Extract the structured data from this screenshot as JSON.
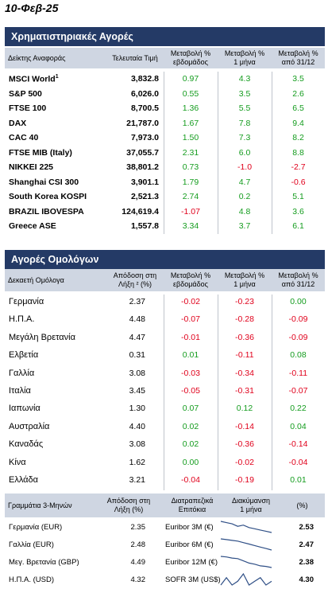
{
  "date": "10-Φεβ-25",
  "stocks": {
    "title": "Χρηματιστηριακές Αγορές",
    "headers": [
      "Δείκτης Αναφοράς",
      "Τελευταία Τιμή",
      "Μεταβολή %\nεβδομάδος",
      "Μεταβολή %\n1 μήνα",
      "Μεταβολή %\nαπό 31/12"
    ],
    "rows": [
      {
        "name": "MSCI World",
        "sup": "1",
        "price": "3,832.8",
        "w": "0.97",
        "m": "4.3",
        "y": "3.5"
      },
      {
        "name": "S&P 500",
        "sup": "",
        "price": "6,026.0",
        "w": "0.55",
        "m": "3.5",
        "y": "2.6"
      },
      {
        "name": "FTSE 100",
        "sup": "",
        "price": "8,700.5",
        "w": "1.36",
        "m": "5.5",
        "y": "6.5"
      },
      {
        "name": "DAX",
        "sup": "",
        "price": "21,787.0",
        "w": "1.67",
        "m": "7.8",
        "y": "9.4"
      },
      {
        "name": "CAC 40",
        "sup": "",
        "price": "7,973.0",
        "w": "1.50",
        "m": "7.3",
        "y": "8.2"
      },
      {
        "name": "FTSE MIB (Italy)",
        "sup": "",
        "price": "37,055.7",
        "w": "2.31",
        "m": "6.0",
        "y": "8.8"
      },
      {
        "name": "NIKKEI 225",
        "sup": "",
        "price": "38,801.2",
        "w": "0.73",
        "m": "-1.0",
        "y": "-2.7"
      },
      {
        "name": "Shanghai CSI 300",
        "sup": "",
        "price": "3,901.1",
        "w": "1.79",
        "m": "4.7",
        "y": "-0.6"
      },
      {
        "name": "South Korea KOSPI",
        "sup": "",
        "price": "2,521.3",
        "w": "2.74",
        "m": "0.2",
        "y": "5.1"
      },
      {
        "name": "BRAZIL IBOVESPA",
        "sup": "",
        "price": "124,619.4",
        "w": "-1.07",
        "m": "4.8",
        "y": "3.6"
      },
      {
        "name": "Greece ASE",
        "sup": "",
        "price": "1,557.8",
        "w": "3.34",
        "m": "3.7",
        "y": "6.1"
      }
    ]
  },
  "bonds": {
    "title": "Αγορές Ομολόγων",
    "headers": [
      "Δεκαετή Ομόλογα",
      "Απόδοση στη\nΛήξη ² (%)",
      "Μεταβολή %\nεβδομάδος",
      "Μεταβολή %\n1 μήνα",
      "Μεταβολή %\nαπό 31/12"
    ],
    "rows": [
      {
        "name": "Γερμανία",
        "yield": "2.37",
        "w": "-0.02",
        "m": "-0.23",
        "y": "0.00"
      },
      {
        "name": "Η.Π.Α.",
        "yield": "4.48",
        "w": "-0.07",
        "m": "-0.28",
        "y": "-0.09"
      },
      {
        "name": "Μεγάλη Βρετανία",
        "yield": "4.47",
        "w": "-0.01",
        "m": "-0.36",
        "y": "-0.09"
      },
      {
        "name": "Ελβετία",
        "yield": "0.31",
        "w": "0.01",
        "m": "-0.11",
        "y": "0.08"
      },
      {
        "name": "Γαλλία",
        "yield": "3.08",
        "w": "-0.03",
        "m": "-0.34",
        "y": "-0.11"
      },
      {
        "name": "Ιταλία",
        "yield": "3.45",
        "w": "-0.05",
        "m": "-0.31",
        "y": "-0.07"
      },
      {
        "name": "Ιαπωνία",
        "yield": "1.30",
        "w": "0.07",
        "m": "0.12",
        "y": "0.22"
      },
      {
        "name": "Αυστραλία",
        "yield": "4.40",
        "w": "0.02",
        "m": "-0.14",
        "y": "0.04"
      },
      {
        "name": "Καναδάς",
        "yield": "3.08",
        "w": "0.02",
        "m": "-0.36",
        "y": "-0.14"
      },
      {
        "name": "Κίνα",
        "yield": "1.62",
        "w": "0.00",
        "m": "-0.02",
        "y": "-0.04"
      },
      {
        "name": "Ελλάδα",
        "yield": "3.21",
        "w": "-0.04",
        "m": "-0.19",
        "y": "0.01"
      }
    ]
  },
  "tbills": {
    "headers": [
      "Γραμμάτια 3-Μηνών",
      "Απόδοση στη\nΛήξη (%)",
      "Διατραπεζικά\nΕπιτόκια",
      "Διακύμανση\n1 μήνα",
      "(%)"
    ],
    "rows": [
      {
        "name": "Γερμανία (EUR)",
        "yield": "2.35",
        "rate": "Euribor 3M (€)",
        "val": "2.53",
        "trend": [
          2.62,
          2.61,
          2.6,
          2.58,
          2.59,
          2.57,
          2.56,
          2.55,
          2.54,
          2.53
        ]
      },
      {
        "name": "Γαλλία (EUR)",
        "yield": "2.48",
        "rate": "Euribor 6M (€)",
        "val": "2.47",
        "trend": [
          2.62,
          2.61,
          2.6,
          2.59,
          2.57,
          2.55,
          2.53,
          2.51,
          2.49,
          2.47
        ]
      },
      {
        "name": "Μεγ. Βρετανία (GBP)",
        "yield": "4.49",
        "rate": "Euribor 12M (€)",
        "val": "2.38",
        "trend": [
          2.58,
          2.57,
          2.55,
          2.54,
          2.5,
          2.46,
          2.44,
          2.41,
          2.4,
          2.38
        ]
      },
      {
        "name": "Η.Π.Α. (USD)",
        "yield": "4.32",
        "rate": "SOFR 3M (US$)",
        "val": "4.30",
        "trend": [
          4.29,
          4.31,
          4.29,
          4.3,
          4.32,
          4.29,
          4.3,
          4.31,
          4.29,
          4.3
        ]
      }
    ]
  },
  "colors": {
    "header_bg": "#243a66",
    "subheader_bg": "#cfd6e2",
    "positive": "#149c1e",
    "negative": "#e0001b"
  }
}
